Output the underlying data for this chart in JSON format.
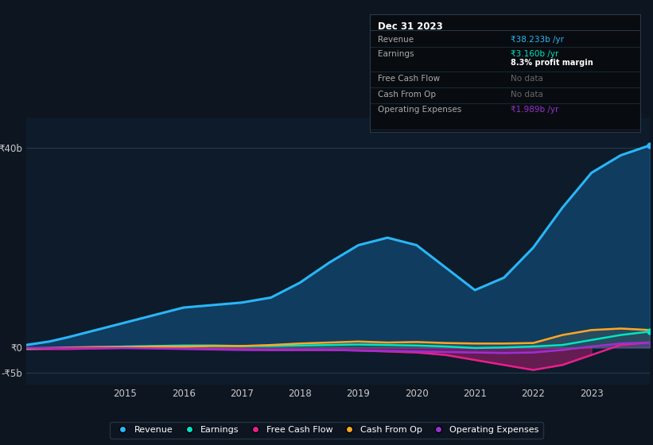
{
  "bg_color": "#0d1520",
  "plot_bg_color": "#0d1b2a",
  "grid_color": "#2a3a4a",
  "years": [
    2013.3,
    2013.7,
    2014.0,
    2014.5,
    2015.0,
    2015.5,
    2016.0,
    2016.5,
    2017.0,
    2017.5,
    2018.0,
    2018.5,
    2019.0,
    2019.5,
    2020.0,
    2020.5,
    2021.0,
    2021.5,
    2022.0,
    2022.5,
    2023.0,
    2023.5,
    2024.0
  ],
  "revenue": [
    0.5,
    1.2,
    2.0,
    3.5,
    5.0,
    6.5,
    8.0,
    8.5,
    9.0,
    10.0,
    13.0,
    17.0,
    20.5,
    22.0,
    20.5,
    16.0,
    11.5,
    14.0,
    20.0,
    28.0,
    35.0,
    38.5,
    40.5
  ],
  "earnings": [
    -0.3,
    -0.2,
    -0.1,
    0.0,
    0.2,
    0.3,
    0.4,
    0.4,
    0.3,
    0.3,
    0.4,
    0.5,
    0.6,
    0.5,
    0.4,
    0.2,
    -0.1,
    0.0,
    0.2,
    0.5,
    1.5,
    2.5,
    3.2
  ],
  "free_cash_flow": [
    -0.3,
    -0.3,
    -0.3,
    -0.2,
    -0.1,
    -0.1,
    -0.2,
    -0.3,
    -0.4,
    -0.5,
    -0.5,
    -0.5,
    -0.6,
    -0.8,
    -1.0,
    -1.5,
    -2.5,
    -3.5,
    -4.5,
    -3.5,
    -1.5,
    0.5,
    1.0
  ],
  "cash_from_op": [
    -0.2,
    -0.1,
    0.0,
    0.1,
    0.1,
    0.2,
    0.2,
    0.3,
    0.3,
    0.5,
    0.8,
    1.0,
    1.2,
    1.0,
    1.1,
    0.9,
    0.8,
    0.8,
    0.9,
    2.5,
    3.5,
    3.8,
    3.5
  ],
  "operating_expenses": [
    -0.1,
    -0.1,
    -0.1,
    -0.1,
    -0.1,
    -0.2,
    -0.3,
    -0.4,
    -0.5,
    -0.5,
    -0.5,
    -0.5,
    -0.6,
    -0.7,
    -0.8,
    -0.9,
    -1.0,
    -1.1,
    -1.0,
    -0.5,
    0.2,
    0.8,
    1.0
  ],
  "revenue_color": "#29b6f6",
  "earnings_color": "#00e5c3",
  "free_cash_flow_color": "#e91e8c",
  "cash_from_op_color": "#ffa726",
  "operating_expenses_color": "#9b30d0",
  "revenue_fill_color": "#1565a0",
  "yticks": [
    40,
    0,
    -5
  ],
  "ytick_labels": [
    "₹40b",
    "₹0",
    "-₹5b"
  ],
  "xlabel_ticks": [
    2015,
    2016,
    2017,
    2018,
    2019,
    2020,
    2021,
    2022,
    2023
  ],
  "ylim_min": -7.5,
  "ylim_max": 46,
  "xlim_min": 2013.3,
  "xlim_max": 2024.0,
  "info_box": {
    "title": "Dec 31 2023",
    "rows": [
      {
        "label": "Revenue",
        "value": "₹38.233b /yr",
        "value_color": "#29b6f6",
        "sub_value": ""
      },
      {
        "label": "Earnings",
        "value": "₹3.160b /yr",
        "value_color": "#00e5c3",
        "sub_value": "8.3% profit margin"
      },
      {
        "label": "Free Cash Flow",
        "value": "No data",
        "value_color": "#666666",
        "sub_value": ""
      },
      {
        "label": "Cash From Op",
        "value": "No data",
        "value_color": "#666666",
        "sub_value": ""
      },
      {
        "label": "Operating Expenses",
        "value": "₹1.989b /yr",
        "value_color": "#9b30d0",
        "sub_value": ""
      }
    ]
  },
  "legend": [
    {
      "label": "Revenue",
      "color": "#29b6f6"
    },
    {
      "label": "Earnings",
      "color": "#00e5c3"
    },
    {
      "label": "Free Cash Flow",
      "color": "#e91e8c"
    },
    {
      "label": "Cash From Op",
      "color": "#ffa726"
    },
    {
      "label": "Operating Expenses",
      "color": "#9b30d0"
    }
  ]
}
